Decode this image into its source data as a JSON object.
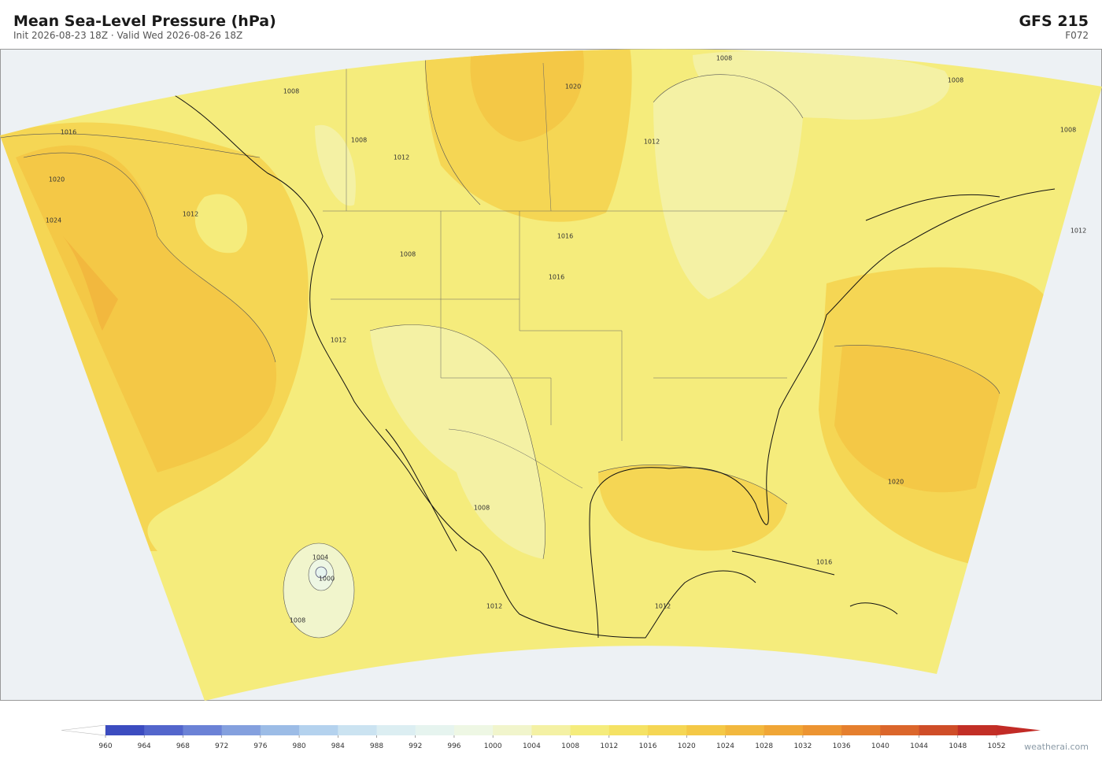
{
  "header": {
    "title": "Mean Sea-Level Pressure  (hPa)",
    "subtitle": "Init 2026-08-23 18Z  ·  Valid Wed 2026-08-26 18Z",
    "model": "GFS  215",
    "forecast": "F072"
  },
  "contour_labels": [
    1008,
    1016,
    1020,
    1024,
    1012,
    1008,
    1012,
    1016,
    1016,
    1020,
    1012,
    1008,
    1008,
    1012,
    1008,
    1004,
    1000,
    1008,
    1012,
    1012,
    1016,
    1020,
    1008,
    1008,
    1012
  ],
  "colorbar": {
    "ticks": [
      960,
      964,
      968,
      972,
      976,
      980,
      984,
      988,
      992,
      996,
      1000,
      1004,
      1008,
      1012,
      1016,
      1020,
      1024,
      1028,
      1032,
      1036,
      1040,
      1044,
      1048,
      1052
    ],
    "colors": [
      "#3c4cc0",
      "#5366cc",
      "#6b82d6",
      "#84a0de",
      "#9cbce6",
      "#b4d2ee",
      "#cbe3f1",
      "#dceef2",
      "#e6f4ef",
      "#eef7e4",
      "#f1f5cc",
      "#f4f1a4",
      "#f5ec7c",
      "#f5e264",
      "#f5d654",
      "#f4c846",
      "#f2b83e",
      "#f0a636",
      "#ec9432",
      "#e57f2e",
      "#db662b",
      "#cf4d28",
      "#c22f26"
    ],
    "under_color": "#ffffff",
    "over_color": "#c22b26"
  },
  "credit": "weatherai.com"
}
